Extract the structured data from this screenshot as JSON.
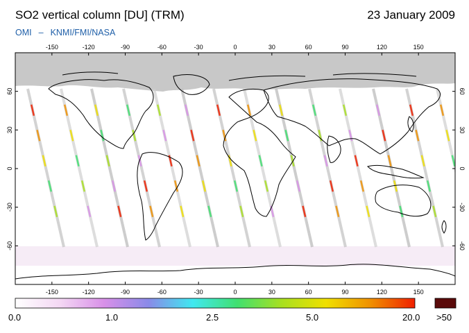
{
  "header": {
    "title": "SO2 vertical column [DU] (TRM)",
    "date": "23 January 2009",
    "credit_left": "OMI",
    "credit_sep": "–",
    "credit_right": "KNMI/FMI/NASA"
  },
  "map": {
    "projection": "equirectangular",
    "lon_ticks": [
      -150,
      -120,
      -90,
      -60,
      -30,
      0,
      30,
      60,
      90,
      120,
      150
    ],
    "lat_ticks": [
      60,
      30,
      0,
      -30,
      -60
    ],
    "no_data_color": "#c8c8c8",
    "coast_color": "#000000"
  },
  "colorbar": {
    "labels": [
      "0.0",
      "1.0",
      "2.5",
      "5.0",
      "20.0"
    ],
    "overflow_label": ">50",
    "overflow_color": "#5a0a0a",
    "stops": [
      "#ffffff",
      "#f4d8f4",
      "#d890e8",
      "#8a8ae8",
      "#40e8f0",
      "#40e070",
      "#a8e020",
      "#f0e000",
      "#f09000",
      "#f02000"
    ]
  }
}
